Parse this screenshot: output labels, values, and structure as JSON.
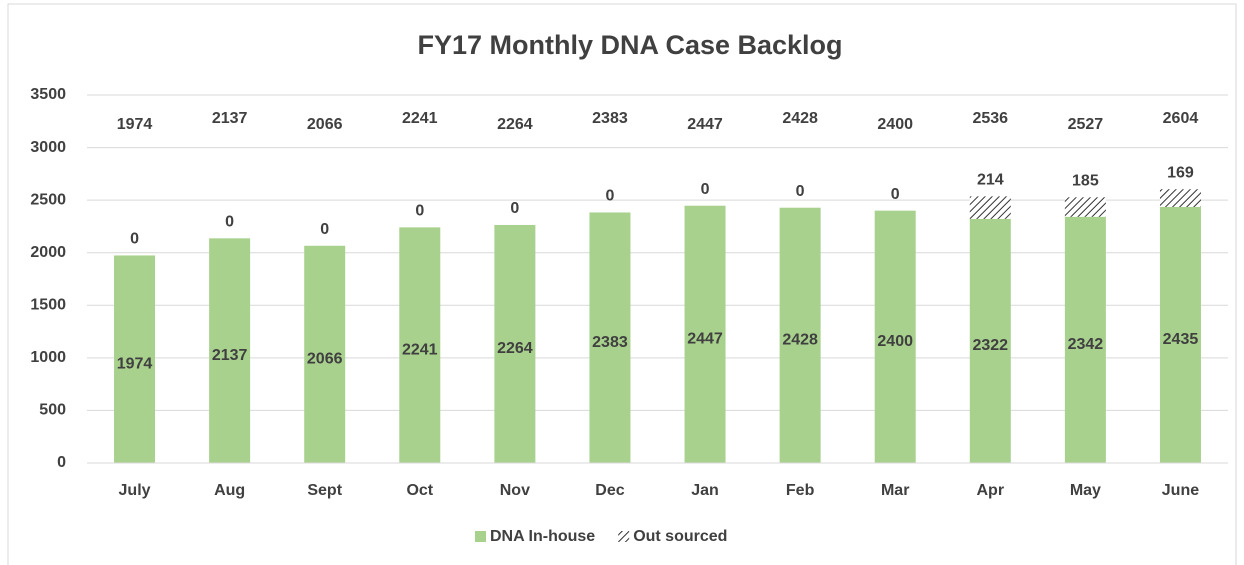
{
  "chart_data": {
    "type": "stacked_bar",
    "title": "FY17 Monthly DNA Case Backlog",
    "categories": [
      "July",
      "Aug",
      "Sept",
      "Oct",
      "Nov",
      "Dec",
      "Jan",
      "Feb",
      "Mar",
      "Apr",
      "May",
      "June"
    ],
    "series": [
      {
        "name": "DNA In-house",
        "color": "#a9d18e",
        "values": [
          1974,
          2137,
          2066,
          2241,
          2264,
          2383,
          2447,
          2428,
          2400,
          2322,
          2342,
          2435
        ]
      },
      {
        "name": "Out sourced",
        "color": "#404040",
        "pattern": "diagonal-hatch",
        "values": [
          0,
          0,
          0,
          0,
          0,
          0,
          0,
          0,
          0,
          214,
          185,
          169
        ]
      }
    ],
    "totals": [
      1974,
      2137,
      2066,
      2241,
      2264,
      2383,
      2447,
      2428,
      2400,
      2536,
      2527,
      2604
    ],
    "ylim": [
      0,
      3500
    ],
    "yticks": [
      0,
      500,
      1000,
      1500,
      2000,
      2500,
      3000,
      3500
    ],
    "grid": true,
    "legend": "bottom"
  }
}
